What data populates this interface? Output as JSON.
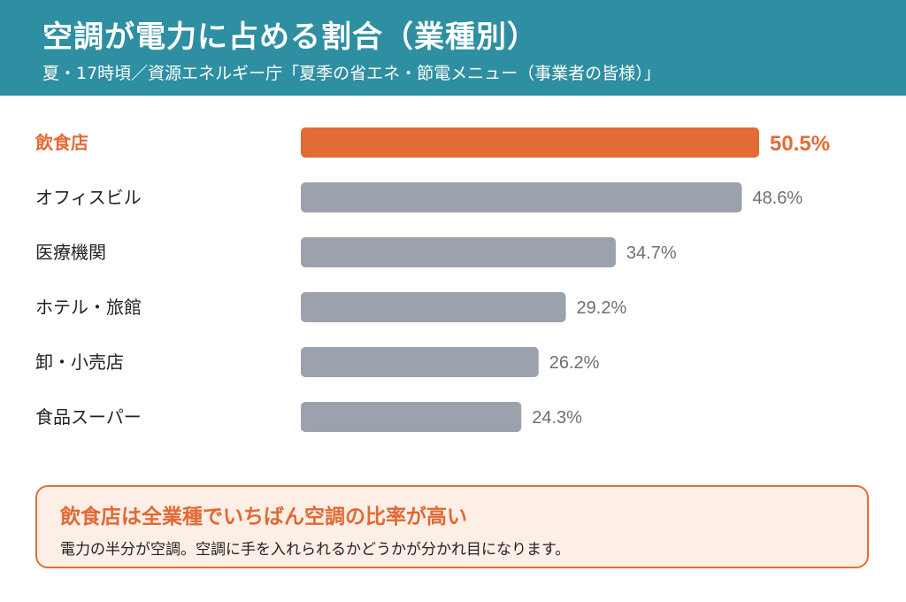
{
  "header": {
    "title": "空調が電力に占める割合（業種別）",
    "subtitle": "夏・17時頃／資源エネルギー庁「夏季の省エネ・節電メニュー（事業者の皆様）」"
  },
  "colors": {
    "header_bg": "#2e8fa2",
    "highlight": "#e36b35",
    "bar": "#9ca2ad",
    "value_text": "#6b6f78",
    "label_text": "#222222"
  },
  "chart_data": {
    "type": "bar",
    "orientation": "horizontal",
    "categories": [
      "飲食店",
      "オフィスビル",
      "医療機関",
      "ホテル・旅館",
      "卸・小売店",
      "食品スーパー"
    ],
    "values": [
      50.5,
      48.6,
      34.7,
      29.2,
      26.2,
      24.3
    ],
    "value_labels": [
      "50.5%",
      "48.6%",
      "34.7%",
      "29.2%",
      "26.2%",
      "24.3%"
    ],
    "unit": "%",
    "highlight_index": 0,
    "xlim": [
      0,
      50.5
    ],
    "grid": false,
    "legend": "none"
  },
  "callout": {
    "title": "飲食店は全業種でいちばん空調の比率が高い",
    "body": "電力の半分が空調。空調に手を入れられるかどうかが分かれ目になります。"
  }
}
